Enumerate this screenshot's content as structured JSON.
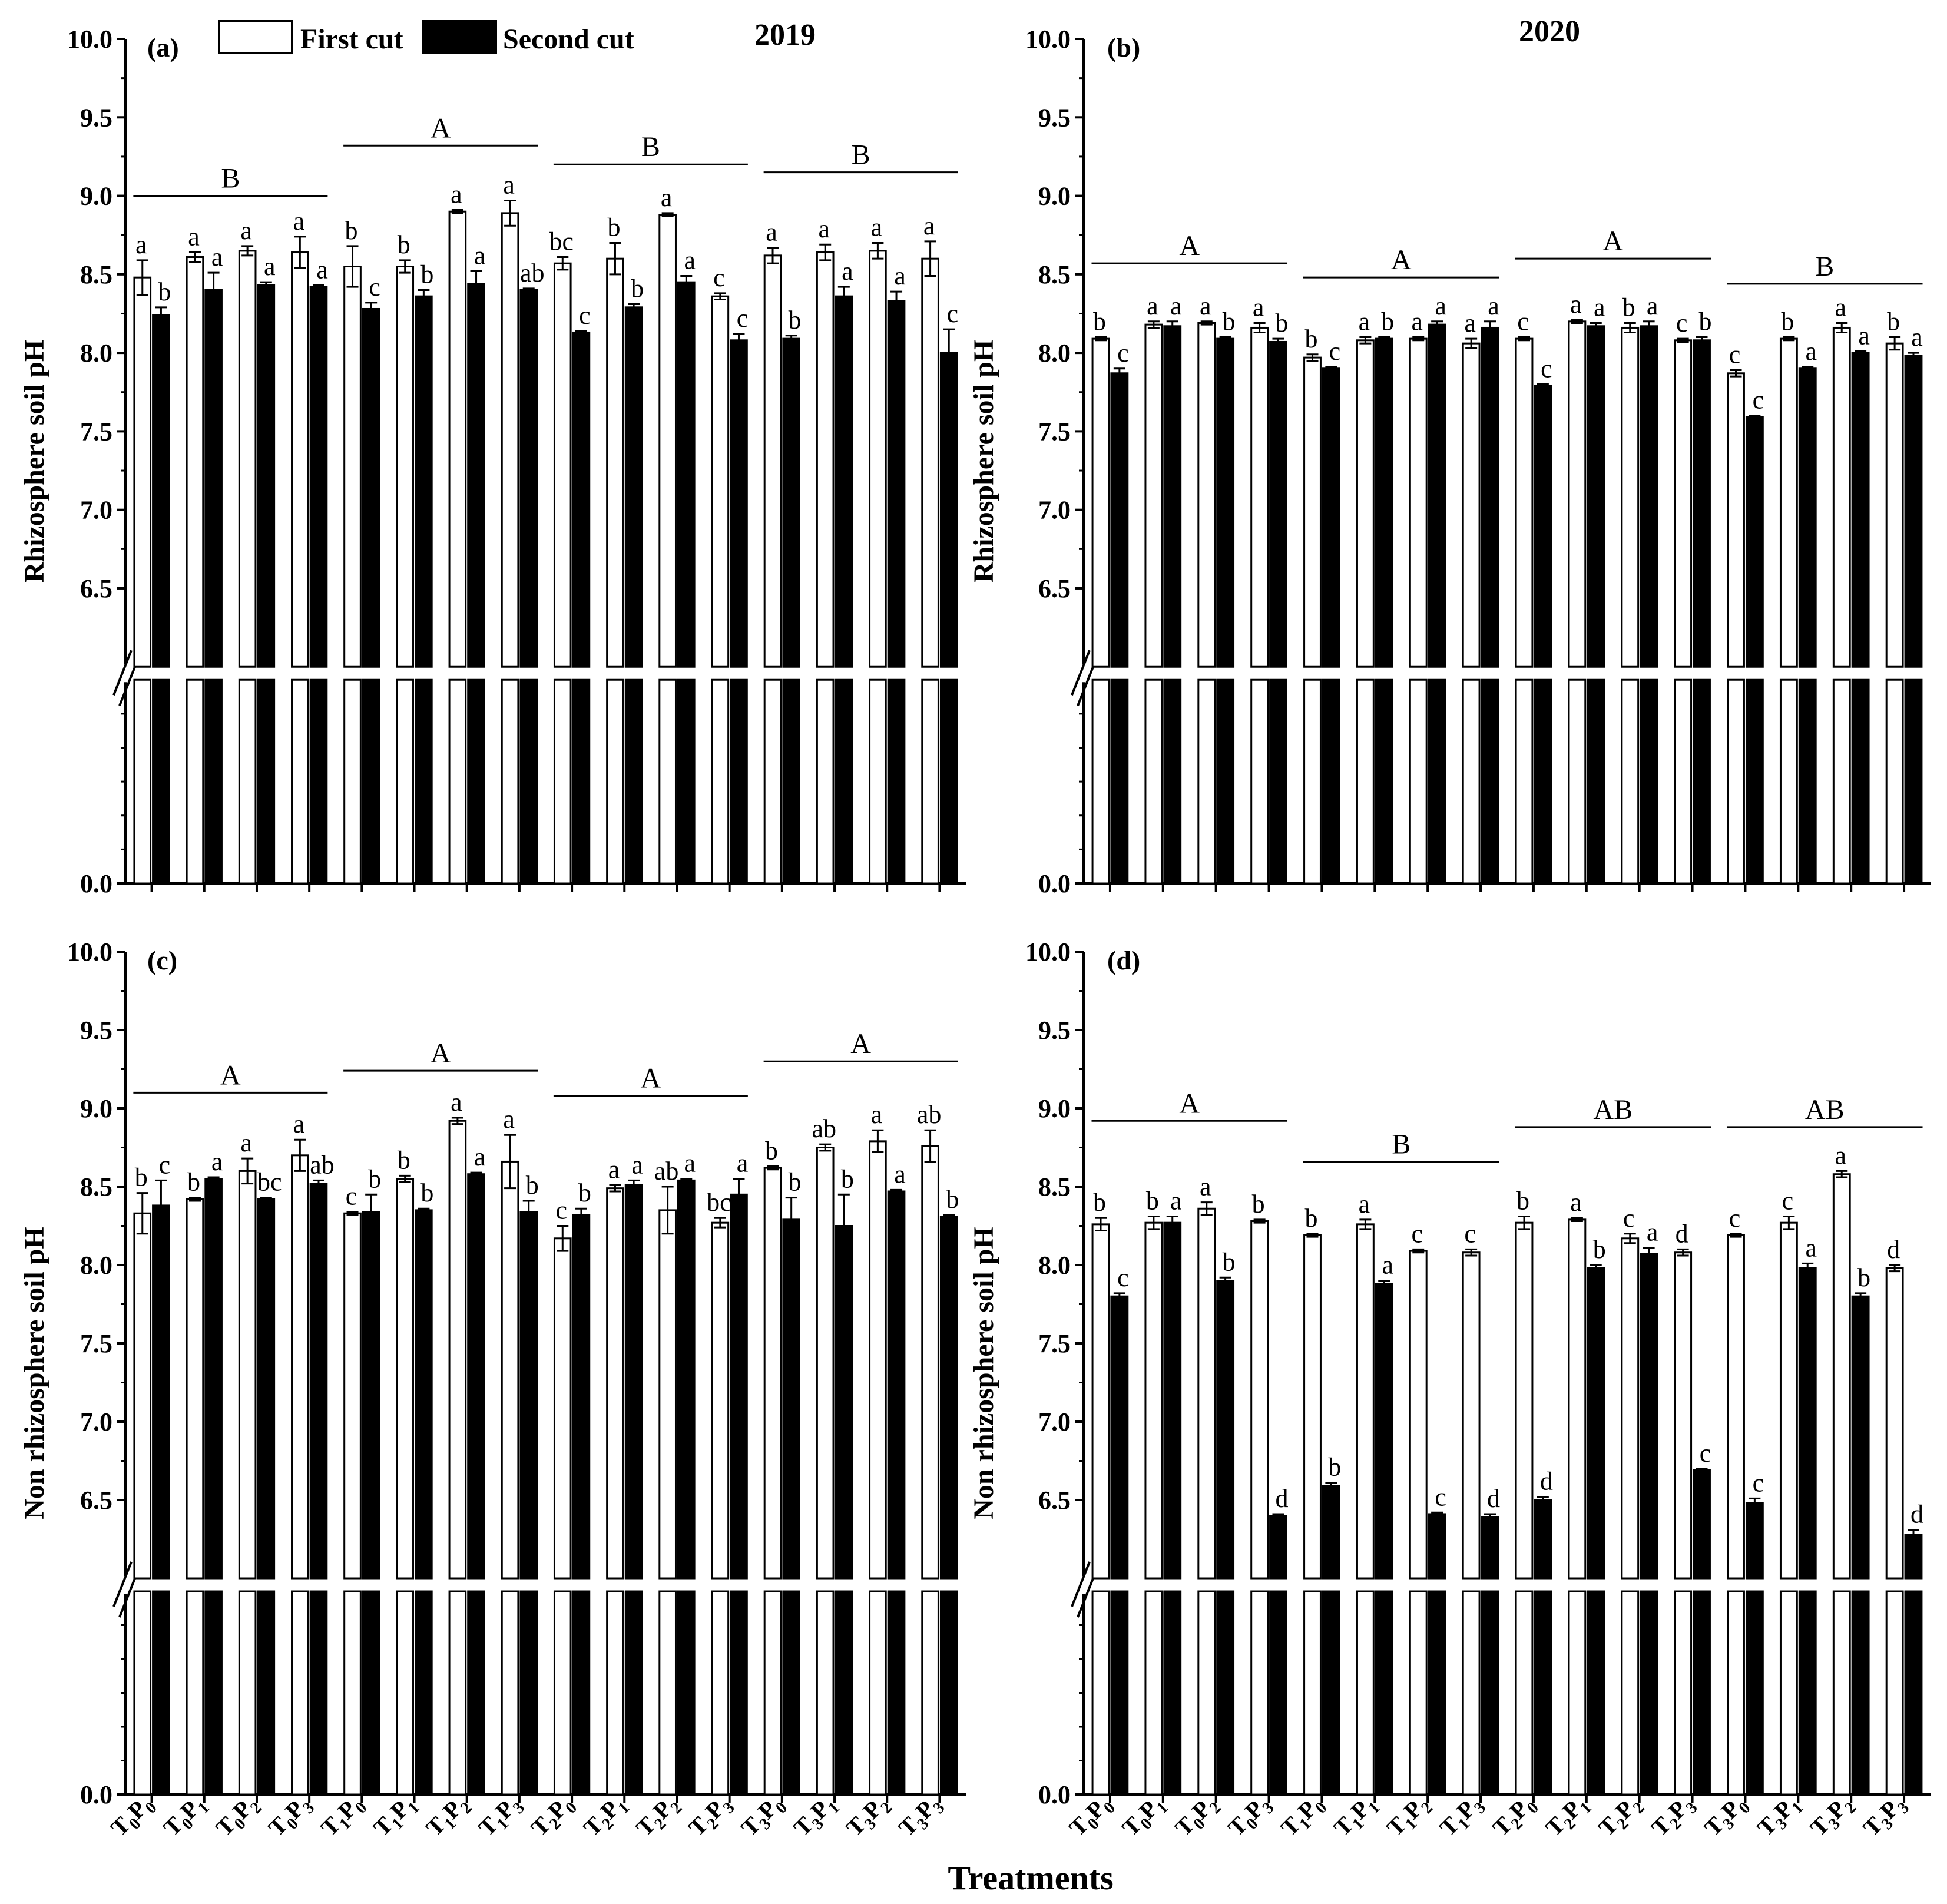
{
  "legend": {
    "first": "First cut",
    "second": "Second cut"
  },
  "years": {
    "left": "2019",
    "right": "2020"
  },
  "x_axis_title": "Treatments",
  "treatments": [
    [
      "0",
      "0"
    ],
    [
      "0",
      "1"
    ],
    [
      "0",
      "2"
    ],
    [
      "0",
      "3"
    ],
    [
      "1",
      "0"
    ],
    [
      "1",
      "1"
    ],
    [
      "1",
      "2"
    ],
    [
      "1",
      "3"
    ],
    [
      "2",
      "0"
    ],
    [
      "2",
      "1"
    ],
    [
      "2",
      "2"
    ],
    [
      "2",
      "3"
    ],
    [
      "3",
      "0"
    ],
    [
      "3",
      "1"
    ],
    [
      "3",
      "2"
    ],
    [
      "3",
      "3"
    ]
  ],
  "y_ticks": [
    "0.0",
    "6.5",
    "7.0",
    "7.5",
    "8.0",
    "8.5",
    "9.0",
    "9.5",
    "10.0"
  ],
  "chart_data": [
    {
      "type": "bar",
      "panel": "(a)",
      "ylabel": "Rhizosphere soil pH",
      "ylim": [
        0,
        10
      ],
      "axis_break": [
        6.0,
        6.5
      ],
      "series": [
        {
          "name": "First cut",
          "values": [
            8.48,
            8.61,
            8.65,
            8.64,
            8.55,
            8.55,
            8.9,
            8.89,
            8.57,
            8.6,
            8.88,
            8.36,
            8.62,
            8.64,
            8.65,
            8.6
          ],
          "errors": [
            0.11,
            0.03,
            0.03,
            0.1,
            0.13,
            0.04,
            0.01,
            0.08,
            0.04,
            0.1,
            0.01,
            0.02,
            0.05,
            0.05,
            0.05,
            0.11
          ],
          "letters": [
            "a",
            "a",
            "a",
            "a",
            "b",
            "b",
            "a",
            "a",
            "bc",
            "b",
            "a",
            "c",
            "a",
            "a",
            "a",
            "a"
          ]
        },
        {
          "name": "Second cut",
          "values": [
            8.24,
            8.4,
            8.43,
            8.42,
            8.28,
            8.36,
            8.44,
            8.4,
            8.13,
            8.29,
            8.45,
            8.08,
            8.09,
            8.36,
            8.33,
            8.0
          ],
          "errors": [
            0.05,
            0.11,
            0.02,
            0.01,
            0.04,
            0.04,
            0.08,
            0.01,
            0.01,
            0.02,
            0.04,
            0.04,
            0.02,
            0.06,
            0.06,
            0.15
          ],
          "letters": [
            "b",
            "a",
            "a",
            "a",
            "c",
            "b",
            "a",
            "ab",
            "c",
            "b",
            "a",
            "c",
            "b",
            "a",
            "a",
            "c"
          ]
        }
      ],
      "groups": [
        {
          "letter": "B",
          "level": 9.0
        },
        {
          "letter": "A",
          "level": 9.32
        },
        {
          "letter": "B",
          "level": 9.2
        },
        {
          "letter": "B",
          "level": 9.15
        }
      ]
    },
    {
      "type": "bar",
      "panel": "(b)",
      "ylabel": "Rhizosphere soil pH",
      "ylim": [
        0,
        10
      ],
      "axis_break": [
        6.0,
        6.5
      ],
      "series": [
        {
          "name": "First cut",
          "values": [
            8.09,
            8.18,
            8.19,
            8.16,
            7.97,
            8.08,
            8.09,
            8.06,
            8.09,
            8.2,
            8.16,
            8.08,
            7.87,
            8.09,
            8.16,
            8.06
          ],
          "errors": [
            0.01,
            0.02,
            0.01,
            0.03,
            0.02,
            0.02,
            0.01,
            0.03,
            0.01,
            0.01,
            0.03,
            0.01,
            0.02,
            0.01,
            0.03,
            0.04
          ],
          "letters": [
            "b",
            "a",
            "a",
            "a",
            "b",
            "a",
            "a",
            "a",
            "c",
            "a",
            "b",
            "c",
            "c",
            "b",
            "a",
            "b"
          ]
        },
        {
          "name": "Second cut",
          "values": [
            7.87,
            8.17,
            8.09,
            8.07,
            7.9,
            8.09,
            8.18,
            8.16,
            7.79,
            8.17,
            8.17,
            8.08,
            7.59,
            7.9,
            8.0,
            7.98
          ],
          "errors": [
            0.03,
            0.03,
            0.01,
            0.02,
            0.01,
            0.01,
            0.02,
            0.04,
            0.01,
            0.02,
            0.03,
            0.02,
            0.01,
            0.01,
            0.01,
            0.02
          ],
          "letters": [
            "c",
            "a",
            "b",
            "b",
            "c",
            "b",
            "a",
            "a",
            "c",
            "a",
            "a",
            "b",
            "c",
            "a",
            "a",
            "a"
          ]
        }
      ],
      "groups": [
        {
          "letter": "A",
          "level": 8.57
        },
        {
          "letter": "A",
          "level": 8.48
        },
        {
          "letter": "A",
          "level": 8.6
        },
        {
          "letter": "B",
          "level": 8.44
        }
      ]
    },
    {
      "type": "bar",
      "panel": "(c)",
      "ylabel": "Non rhizosphere soil pH",
      "ylim": [
        0,
        10
      ],
      "axis_break": [
        6.0,
        6.5
      ],
      "series": [
        {
          "name": "First cut",
          "values": [
            8.33,
            8.42,
            8.6,
            8.7,
            8.33,
            8.55,
            8.92,
            8.66,
            8.17,
            8.49,
            8.35,
            8.27,
            8.62,
            8.75,
            8.79,
            8.76
          ],
          "errors": [
            0.13,
            0.01,
            0.08,
            0.1,
            0.01,
            0.02,
            0.02,
            0.17,
            0.08,
            0.02,
            0.15,
            0.03,
            0.01,
            0.02,
            0.07,
            0.1
          ],
          "letters": [
            "b",
            "b",
            "a",
            "a",
            "c",
            "b",
            "a",
            "a",
            "c",
            "a",
            "ab",
            "bc",
            "b",
            "ab",
            "a",
            "ab"
          ]
        },
        {
          "name": "Second cut",
          "values": [
            8.38,
            8.55,
            8.42,
            8.52,
            8.34,
            8.35,
            8.58,
            8.34,
            8.32,
            8.51,
            8.54,
            8.45,
            8.29,
            8.25,
            8.47,
            8.31
          ],
          "errors": [
            0.16,
            0.01,
            0.01,
            0.02,
            0.11,
            0.01,
            0.01,
            0.07,
            0.04,
            0.03,
            0.01,
            0.1,
            0.14,
            0.2,
            0.01,
            0.01
          ],
          "letters": [
            "c",
            "a",
            "bc",
            "ab",
            "b",
            "b",
            "a",
            "b",
            "b",
            "a",
            "a",
            "a",
            "b",
            "b",
            "a",
            "b"
          ]
        }
      ],
      "groups": [
        {
          "letter": "A",
          "level": 9.1
        },
        {
          "letter": "A",
          "level": 9.24
        },
        {
          "letter": "A",
          "level": 9.08
        },
        {
          "letter": "A",
          "level": 9.3
        }
      ]
    },
    {
      "type": "bar",
      "panel": "(d)",
      "ylabel": "Non rhizosphere soil pH",
      "ylim": [
        0,
        10
      ],
      "axis_break": [
        6.0,
        6.5
      ],
      "series": [
        {
          "name": "First cut",
          "values": [
            8.26,
            8.27,
            8.36,
            8.28,
            8.19,
            8.26,
            8.09,
            8.08,
            8.27,
            8.29,
            8.17,
            8.08,
            8.19,
            8.27,
            8.58,
            7.98
          ],
          "errors": [
            0.04,
            0.04,
            0.04,
            0.01,
            0.01,
            0.03,
            0.01,
            0.02,
            0.04,
            0.01,
            0.03,
            0.02,
            0.01,
            0.04,
            0.02,
            0.02
          ],
          "letters": [
            "b",
            "b",
            "a",
            "b",
            "b",
            "a",
            "c",
            "c",
            "b",
            "a",
            "c",
            "d",
            "c",
            "c",
            "a",
            "d"
          ]
        },
        {
          "name": "Second cut",
          "values": [
            7.8,
            8.27,
            7.9,
            6.4,
            6.59,
            7.88,
            6.41,
            6.39,
            6.5,
            7.98,
            8.07,
            6.69,
            6.48,
            7.98,
            7.8,
            6.28
          ],
          "errors": [
            0.02,
            0.04,
            0.02,
            0.01,
            0.02,
            0.02,
            0.01,
            0.02,
            0.02,
            0.02,
            0.04,
            0.01,
            0.03,
            0.03,
            0.02,
            0.03
          ],
          "letters": [
            "c",
            "a",
            "b",
            "d",
            "b",
            "a",
            "c",
            "d",
            "d",
            "b",
            "a",
            "c",
            "c",
            "a",
            "b",
            "d"
          ]
        }
      ],
      "groups": [
        {
          "letter": "A",
          "level": 8.92
        },
        {
          "letter": "B",
          "level": 8.66
        },
        {
          "letter": "AB",
          "level": 8.88
        },
        {
          "letter": "AB",
          "level": 8.88
        }
      ]
    }
  ]
}
